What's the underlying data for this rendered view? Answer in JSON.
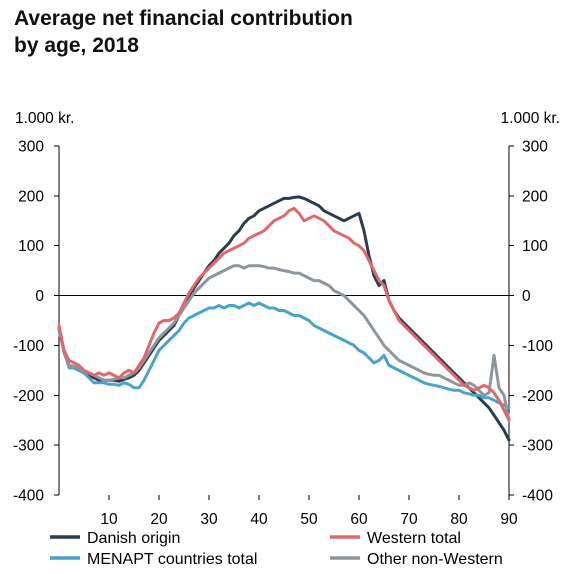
{
  "chart_data": {
    "type": "line",
    "title": [
      "Average net financial contribution",
      "by age, 2018"
    ],
    "y_unit_left": "1.000 kr.",
    "y_unit_right": "1.000 kr.",
    "xlim": [
      0,
      90
    ],
    "ylim": [
      -400,
      300
    ],
    "x_ticks": [
      10,
      20,
      30,
      40,
      50,
      60,
      70,
      80,
      90
    ],
    "y_ticks": [
      300,
      200,
      100,
      0,
      -100,
      -200,
      -300,
      -400
    ],
    "grid": false,
    "legend_position": "bottom",
    "series": [
      {
        "name": "Danish origin",
        "color": "#2a3d4e",
        "x": [
          0,
          1,
          2,
          3,
          4,
          5,
          6,
          7,
          8,
          9,
          10,
          11,
          12,
          13,
          14,
          15,
          16,
          17,
          18,
          19,
          20,
          21,
          22,
          23,
          24,
          25,
          26,
          27,
          28,
          29,
          30,
          31,
          32,
          33,
          34,
          35,
          36,
          37,
          38,
          39,
          40,
          41,
          42,
          43,
          44,
          45,
          46,
          47,
          48,
          49,
          50,
          51,
          52,
          53,
          54,
          55,
          56,
          57,
          58,
          59,
          60,
          61,
          62,
          63,
          64,
          65,
          66,
          67,
          68,
          69,
          70,
          71,
          72,
          73,
          74,
          75,
          76,
          77,
          78,
          79,
          80,
          81,
          82,
          83,
          84,
          85,
          86,
          87,
          88,
          89,
          90
        ],
        "values": [
          -65,
          -110,
          -140,
          -145,
          -150,
          -155,
          -160,
          -165,
          -170,
          -170,
          -170,
          -170,
          -172,
          -168,
          -165,
          -160,
          -150,
          -135,
          -120,
          -105,
          -90,
          -80,
          -70,
          -60,
          -40,
          -20,
          0,
          15,
          30,
          45,
          60,
          70,
          85,
          95,
          105,
          120,
          130,
          145,
          155,
          160,
          170,
          175,
          180,
          185,
          190,
          195,
          195,
          197,
          198,
          195,
          190,
          185,
          180,
          170,
          165,
          160,
          155,
          150,
          155,
          160,
          165,
          130,
          80,
          40,
          20,
          30,
          -10,
          -30,
          -45,
          -55,
          -65,
          -75,
          -85,
          -95,
          -105,
          -115,
          -125,
          -135,
          -145,
          -155,
          -165,
          -175,
          -185,
          -195,
          -205,
          -215,
          -225,
          -240,
          -255,
          -270,
          -290
        ]
      },
      {
        "name": "Western total",
        "color": "#e0686c",
        "x": [
          0,
          1,
          2,
          3,
          4,
          5,
          6,
          7,
          8,
          9,
          10,
          11,
          12,
          13,
          14,
          15,
          16,
          17,
          18,
          19,
          20,
          21,
          22,
          23,
          24,
          25,
          26,
          27,
          28,
          29,
          30,
          31,
          32,
          33,
          34,
          35,
          36,
          37,
          38,
          39,
          40,
          41,
          42,
          43,
          44,
          45,
          46,
          47,
          48,
          49,
          50,
          51,
          52,
          53,
          54,
          55,
          56,
          57,
          58,
          59,
          60,
          61,
          62,
          63,
          64,
          65,
          66,
          67,
          68,
          69,
          70,
          71,
          72,
          73,
          74,
          75,
          76,
          77,
          78,
          79,
          80,
          81,
          82,
          83,
          84,
          85,
          86,
          87,
          88,
          89,
          90
        ],
        "values": [
          -60,
          -110,
          -130,
          -135,
          -140,
          -150,
          -155,
          -160,
          -155,
          -160,
          -155,
          -160,
          -165,
          -155,
          -150,
          -155,
          -140,
          -125,
          -100,
          -75,
          -55,
          -50,
          -50,
          -45,
          -35,
          -15,
          5,
          20,
          35,
          45,
          55,
          65,
          75,
          85,
          90,
          95,
          100,
          105,
          115,
          120,
          125,
          130,
          140,
          150,
          155,
          160,
          170,
          175,
          165,
          150,
          155,
          160,
          155,
          150,
          140,
          130,
          125,
          120,
          115,
          105,
          100,
          90,
          70,
          50,
          30,
          20,
          -10,
          -30,
          -50,
          -60,
          -70,
          -80,
          -90,
          -100,
          -110,
          -120,
          -130,
          -140,
          -150,
          -160,
          -170,
          -180,
          -185,
          -190,
          -185,
          -180,
          -185,
          -195,
          -210,
          -230,
          -250
        ]
      },
      {
        "name": "MENAPT countries total",
        "color": "#4ba3c7",
        "x": [
          0,
          1,
          2,
          3,
          4,
          5,
          6,
          7,
          8,
          9,
          10,
          11,
          12,
          13,
          14,
          15,
          16,
          17,
          18,
          19,
          20,
          21,
          22,
          23,
          24,
          25,
          26,
          27,
          28,
          29,
          30,
          31,
          32,
          33,
          34,
          35,
          36,
          37,
          38,
          39,
          40,
          41,
          42,
          43,
          44,
          45,
          46,
          47,
          48,
          49,
          50,
          51,
          52,
          53,
          54,
          55,
          56,
          57,
          58,
          59,
          60,
          61,
          62,
          63,
          64,
          65,
          66,
          67,
          68,
          69,
          70,
          71,
          72,
          73,
          74,
          75,
          76,
          77,
          78,
          79,
          80,
          81,
          82,
          83,
          84,
          85,
          86,
          87,
          88,
          89,
          90
        ],
        "values": [
          -70,
          -110,
          -145,
          -145,
          -150,
          -155,
          -165,
          -175,
          -175,
          -175,
          -178,
          -178,
          -180,
          -175,
          -178,
          -185,
          -185,
          -170,
          -150,
          -130,
          -110,
          -100,
          -90,
          -80,
          -70,
          -55,
          -45,
          -40,
          -35,
          -30,
          -25,
          -25,
          -20,
          -25,
          -20,
          -20,
          -25,
          -20,
          -15,
          -20,
          -15,
          -20,
          -25,
          -25,
          -30,
          -30,
          -35,
          -40,
          -40,
          -45,
          -50,
          -60,
          -65,
          -70,
          -75,
          -80,
          -85,
          -90,
          -95,
          -100,
          -110,
          -115,
          -125,
          -135,
          -130,
          -120,
          -140,
          -145,
          -150,
          -155,
          -160,
          -165,
          -170,
          -175,
          -178,
          -180,
          -182,
          -185,
          -188,
          -190,
          -190,
          -195,
          -197,
          -200,
          -200,
          -205,
          -205,
          -210,
          -215,
          -220,
          -225
        ]
      },
      {
        "name": "Other non-Western",
        "color": "#8e969d",
        "x": [
          0,
          1,
          2,
          3,
          4,
          5,
          6,
          7,
          8,
          9,
          10,
          11,
          12,
          13,
          14,
          15,
          16,
          17,
          18,
          19,
          20,
          21,
          22,
          23,
          24,
          25,
          26,
          27,
          28,
          29,
          30,
          31,
          32,
          33,
          34,
          35,
          36,
          37,
          38,
          39,
          40,
          41,
          42,
          43,
          44,
          45,
          46,
          47,
          48,
          49,
          50,
          51,
          52,
          53,
          54,
          55,
          56,
          57,
          58,
          59,
          60,
          61,
          62,
          63,
          64,
          65,
          66,
          67,
          68,
          69,
          70,
          71,
          72,
          73,
          74,
          75,
          76,
          77,
          78,
          79,
          80,
          81,
          82,
          83,
          84,
          85,
          86,
          87,
          88,
          89,
          90
        ],
        "values": [
          -65,
          -115,
          -140,
          -142,
          -145,
          -150,
          -155,
          -160,
          -165,
          -170,
          -170,
          -168,
          -165,
          -165,
          -160,
          -155,
          -145,
          -130,
          -115,
          -100,
          -85,
          -75,
          -65,
          -55,
          -40,
          -25,
          -10,
          5,
          15,
          25,
          35,
          40,
          45,
          50,
          55,
          60,
          60,
          55,
          60,
          60,
          60,
          58,
          55,
          55,
          52,
          50,
          48,
          45,
          45,
          40,
          35,
          30,
          30,
          25,
          20,
          10,
          5,
          0,
          -10,
          -20,
          -30,
          -40,
          -55,
          -70,
          -85,
          -100,
          -110,
          -120,
          -130,
          -135,
          -140,
          -145,
          -150,
          -155,
          -158,
          -160,
          -160,
          -165,
          -170,
          -175,
          -180,
          -180,
          -175,
          -180,
          -190,
          -200,
          -195,
          -120,
          -185,
          -200,
          -250
        ]
      }
    ]
  }
}
